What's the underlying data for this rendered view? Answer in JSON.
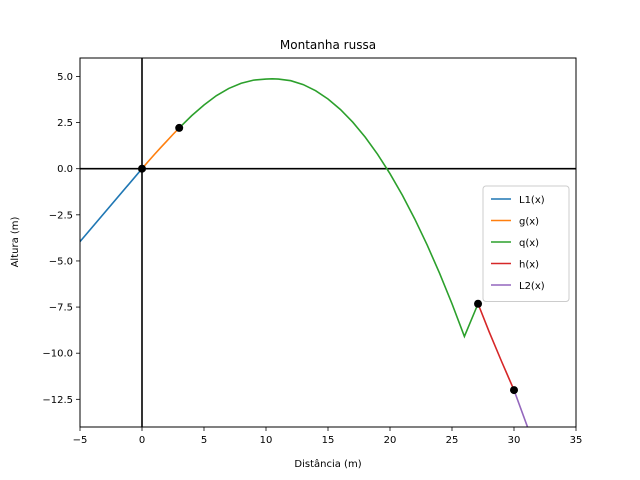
{
  "chart_data": {
    "type": "line",
    "title": "Montanha russa",
    "xlabel": "Distância (m)",
    "ylabel": "Altura (m)",
    "xlim": [
      -5,
      35
    ],
    "ylim": [
      -14,
      6
    ],
    "x_ticks": [
      -5,
      0,
      5,
      10,
      15,
      20,
      25,
      30,
      35
    ],
    "x_tick_labels": [
      "−5",
      "0",
      "5",
      "10",
      "15",
      "20",
      "25",
      "30",
      "35"
    ],
    "y_ticks": [
      5.0,
      2.5,
      0.0,
      -2.5,
      -5.0,
      -7.5,
      -10.0,
      -12.5
    ],
    "y_tick_labels": [
      "5.0",
      "2.5",
      "0.0",
      "−2.5",
      "−5.0",
      "−7.5",
      "−10.0",
      "−12.5"
    ],
    "grid": false,
    "reference_lines": {
      "horizontal_y": 0,
      "vertical_x": 0,
      "color": "#000000"
    },
    "legend_position": "center-right",
    "series": [
      {
        "name": "L1(x)",
        "color": "#1f77b4",
        "x": [
          -5,
          0
        ],
        "y": [
          -3.95,
          0
        ]
      },
      {
        "name": "g(x)",
        "color": "#ff7f0e",
        "x": [
          0,
          0.5,
          1,
          1.5,
          2,
          2.5,
          3
        ],
        "y": [
          0,
          0.39,
          0.77,
          1.14,
          1.5,
          1.86,
          2.21
        ]
      },
      {
        "name": "q(x)",
        "color": "#2ca02c",
        "x": [
          3,
          4,
          5,
          6,
          7,
          8,
          9,
          10,
          10.5,
          11,
          12,
          13,
          14,
          15,
          16,
          17,
          18,
          19,
          20,
          21,
          22,
          23,
          24,
          25,
          26,
          27.1
        ],
        "y": [
          2.21,
          2.87,
          3.45,
          3.96,
          4.35,
          4.63,
          4.8,
          4.86,
          4.87,
          4.86,
          4.77,
          4.56,
          4.23,
          3.78,
          3.21,
          2.52,
          1.71,
          0.78,
          -0.27,
          -1.44,
          -2.73,
          -4.14,
          -5.67,
          -7.32,
          -9.09,
          -7.32
        ],
        "note_points": ""
      },
      {
        "name": "h(x)",
        "color": "#d62728",
        "x": [
          27.1,
          28,
          29,
          30
        ],
        "y": [
          -7.32,
          -8.85,
          -10.45,
          -12.0
        ]
      },
      {
        "name": "L2(x)",
        "color": "#9467bd",
        "x": [
          30,
          31.2
        ],
        "y": [
          -12.0,
          -14.2
        ]
      }
    ],
    "points": [
      {
        "x": 0,
        "y": 0
      },
      {
        "x": 3,
        "y": 2.21
      },
      {
        "x": 27.1,
        "y": -7.32
      },
      {
        "x": 30,
        "y": -12.0
      }
    ]
  }
}
